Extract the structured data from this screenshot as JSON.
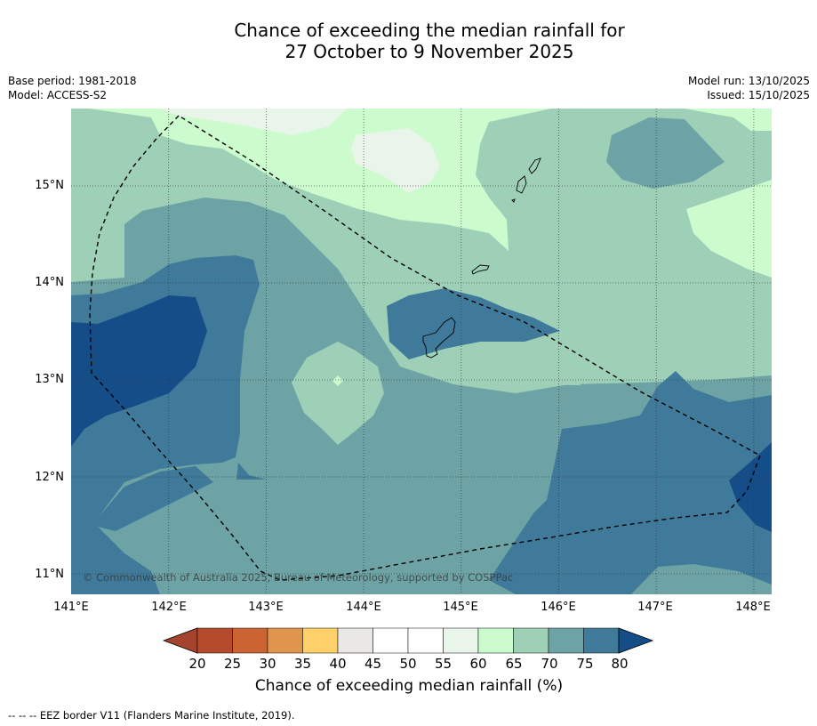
{
  "title": {
    "line1": "Chance of exceeding the median rainfall for",
    "line2": "27 October to 9 November 2025"
  },
  "meta": {
    "base_period": "Base period: 1981-2018",
    "model": "Model: ACCESS-S2",
    "model_run": "Model run: 13/10/2025",
    "issued": "Issued: 15/10/2025"
  },
  "map": {
    "y_labels": [
      "15°N",
      "14°N",
      "13°N",
      "12°N",
      "11°N"
    ],
    "x_labels": [
      "141°E",
      "142°E",
      "143°E",
      "144°E",
      "145°E",
      "146°E",
      "147°E",
      "148°E"
    ],
    "copyright": "© Commonwealth of Australia 2025, Bureau of Meteorology, supported by COSPPac",
    "colors": {
      "c60_65": "#ccfcce",
      "c65_70": "#9ed0b8",
      "c70_75": "#6da3a5",
      "c75_80": "#407a9a",
      "c80_plus": "#144d88",
      "c55_60": "#e9f5ea"
    }
  },
  "colorbar": {
    "title": "Chance of exceeding median rainfall (%)",
    "ticks": [
      "20",
      "25",
      "30",
      "35",
      "40",
      "45",
      "50",
      "55",
      "60",
      "65",
      "70",
      "75",
      "80"
    ],
    "colors": [
      "#a6432d",
      "#b54b2d",
      "#cc6333",
      "#e0944c",
      "#fdd06a",
      "#e9e8e4",
      "#ffffff",
      "#ffffff",
      "#e9f5ea",
      "#ccfcce",
      "#9ed0b8",
      "#6da3a5",
      "#407a9a",
      "#144d88"
    ]
  },
  "footnote": "--  --  -- EEZ border V11 (Flanders Marine Institute, 2019)."
}
